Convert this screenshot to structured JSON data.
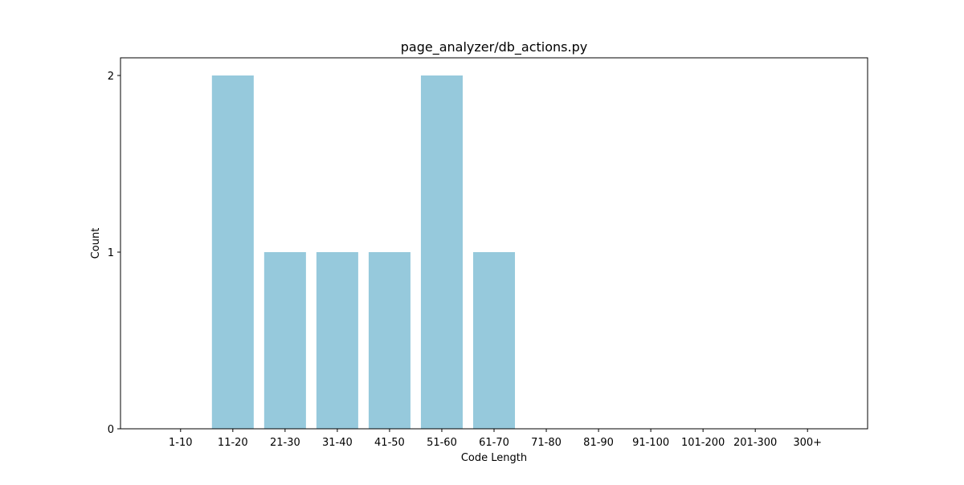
{
  "chart_data": {
    "type": "bar",
    "title": "page_analyzer/db_actions.py",
    "xlabel": "Code Length",
    "ylabel": "Count",
    "categories": [
      "1-10",
      "11-20",
      "21-30",
      "31-40",
      "41-50",
      "51-60",
      "61-70",
      "71-80",
      "81-90",
      "91-100",
      "101-200",
      "201-300",
      "300+"
    ],
    "values": [
      0,
      2,
      1,
      1,
      1,
      2,
      1,
      0,
      0,
      0,
      0,
      0,
      0
    ],
    "ylim": [
      0,
      2.1
    ],
    "yticks": [
      0,
      1,
      2
    ],
    "grid": false,
    "bar_color": "#96c9dc"
  }
}
